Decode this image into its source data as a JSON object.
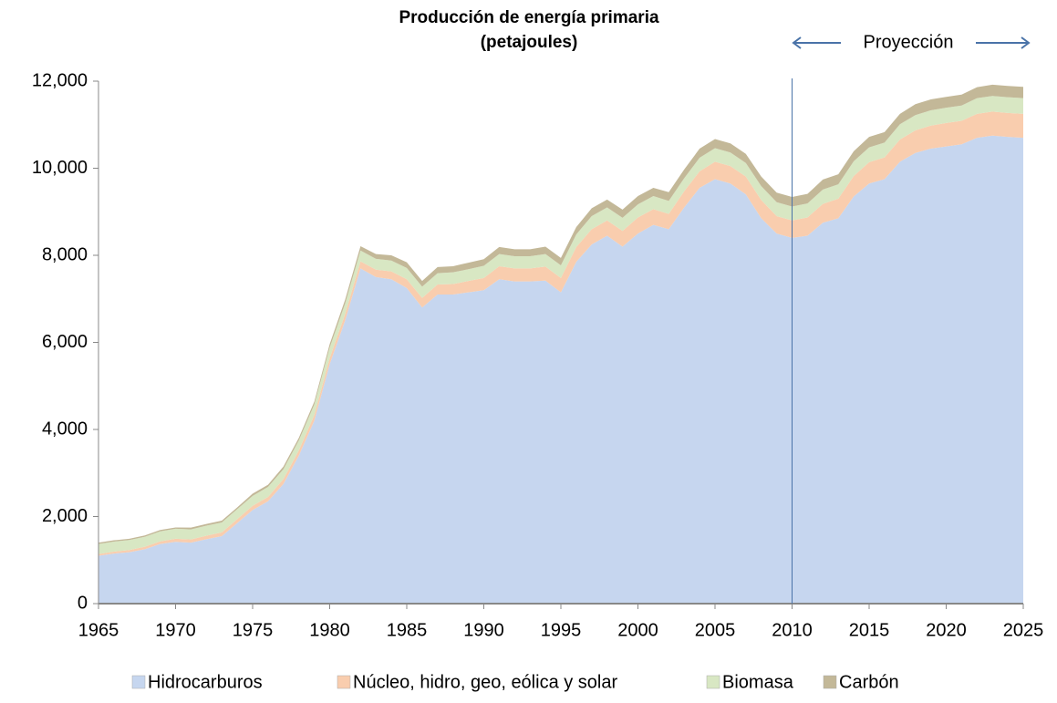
{
  "chart_data": {
    "type": "stacked_area",
    "title": "Producción de energía primaria",
    "subtitle": "(petajoules)",
    "annotations": [
      {
        "text": "Proyección",
        "x": 2010
      }
    ],
    "x": [
      1965,
      1966,
      1967,
      1968,
      1969,
      1970,
      1971,
      1972,
      1973,
      1974,
      1975,
      1976,
      1977,
      1978,
      1979,
      1980,
      1981,
      1982,
      1983,
      1984,
      1985,
      1986,
      1987,
      1988,
      1989,
      1990,
      1991,
      1992,
      1993,
      1994,
      1995,
      1996,
      1997,
      1998,
      1999,
      2000,
      2001,
      2002,
      2003,
      2004,
      2005,
      2006,
      2007,
      2008,
      2009,
      2010,
      2011,
      2012,
      2013,
      2014,
      2015,
      2016,
      2017,
      2018,
      2019,
      2020,
      2021,
      2022,
      2023,
      2024,
      2025
    ],
    "series": [
      {
        "name": "Hidrocarburos",
        "color": "#c6d6ef",
        "values": [
          1100,
          1150,
          1180,
          1250,
          1370,
          1420,
          1400,
          1480,
          1550,
          1850,
          2150,
          2350,
          2750,
          3400,
          4200,
          5500,
          6500,
          7700,
          7500,
          7450,
          7250,
          6800,
          7100,
          7100,
          7150,
          7200,
          7450,
          7400,
          7400,
          7420,
          7150,
          7850,
          8250,
          8450,
          8200,
          8500,
          8700,
          8600,
          9100,
          9550,
          9750,
          9650,
          9400,
          8850,
          8500,
          8400,
          8450,
          8750,
          8850,
          9350,
          9650,
          9750,
          10150,
          10350,
          10450,
          10500,
          10550,
          10700,
          10750,
          10720,
          10700
        ]
      },
      {
        "name": "Núcleo, hidro, geo, eólica y solar",
        "color": "#f9cdae",
        "values": [
          40,
          45,
          50,
          55,
          60,
          70,
          75,
          80,
          85,
          90,
          95,
          100,
          110,
          120,
          130,
          140,
          150,
          160,
          170,
          180,
          200,
          220,
          230,
          240,
          260,
          280,
          300,
          300,
          300,
          320,
          330,
          340,
          350,
          350,
          360,
          370,
          360,
          350,
          370,
          380,
          400,
          400,
          410,
          420,
          400,
          400,
          420,
          430,
          450,
          470,
          490,
          500,
          510,
          520,
          530,
          540,
          540,
          550,
          550,
          550,
          550
        ]
      },
      {
        "name": "Biomasa",
        "color": "#d8e7c3",
        "values": [
          230,
          230,
          230,
          230,
          230,
          230,
          230,
          230,
          230,
          230,
          230,
          230,
          230,
          230,
          240,
          240,
          240,
          250,
          250,
          250,
          260,
          260,
          260,
          270,
          270,
          280,
          280,
          280,
          280,
          290,
          290,
          290,
          300,
          300,
          300,
          300,
          300,
          300,
          300,
          310,
          310,
          310,
          310,
          320,
          320,
          320,
          320,
          330,
          330,
          340,
          340,
          340,
          350,
          350,
          350,
          350,
          350,
          360,
          360,
          360,
          360
        ]
      },
      {
        "name": "Carbón",
        "color": "#c3b898",
        "values": [
          30,
          30,
          30,
          30,
          30,
          30,
          40,
          40,
          40,
          40,
          50,
          50,
          60,
          60,
          70,
          80,
          90,
          100,
          110,
          120,
          130,
          130,
          140,
          140,
          150,
          150,
          160,
          160,
          160,
          170,
          170,
          170,
          180,
          180,
          190,
          190,
          190,
          200,
          200,
          210,
          210,
          210,
          210,
          220,
          220,
          220,
          220,
          230,
          230,
          230,
          240,
          240,
          240,
          250,
          250,
          250,
          250,
          250,
          260,
          260,
          260
        ]
      }
    ],
    "xlim": [
      1965,
      2025
    ],
    "xticks": [
      1965,
      1970,
      1975,
      1980,
      1985,
      1990,
      1995,
      2000,
      2005,
      2010,
      2015,
      2020,
      2025
    ],
    "ylim": [
      0,
      12000
    ],
    "yticks": [
      0,
      {
        "value": 2000,
        "label": "2,000"
      },
      {
        "value": 4000,
        "label": "4,000"
      },
      {
        "value": 6000,
        "label": "6,000"
      },
      {
        "value": 8000,
        "label": "8,000"
      },
      {
        "value": 10000,
        "label": "10,000"
      },
      {
        "value": 12000,
        "label": "12,000"
      }
    ],
    "legend": "bottom"
  }
}
